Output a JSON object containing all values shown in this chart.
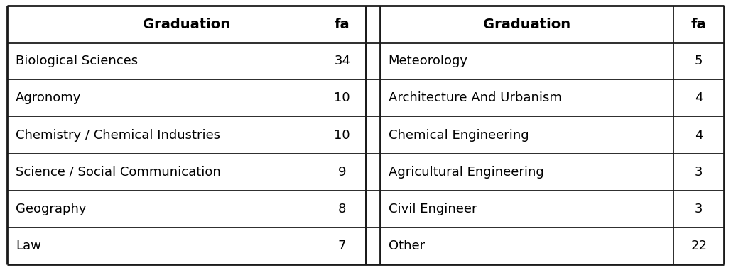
{
  "left_col": [
    "Biological Sciences",
    "Agronomy",
    "Chemistry / Chemical Industries",
    "Science / Social Communication",
    "Geography",
    "Law"
  ],
  "left_fa": [
    "34",
    "10",
    "10",
    "9",
    "8",
    "7"
  ],
  "right_col": [
    "Meteorology",
    "Architecture And Urbanism",
    "Chemical Engineering",
    "Agricultural Engineering",
    "Civil Engineer",
    "Other"
  ],
  "right_fa": [
    "5",
    "4",
    "4",
    "3",
    "3",
    "22"
  ],
  "header": [
    "Graduation",
    "fa",
    "Graduation",
    "fa"
  ],
  "bg_color": "#ffffff",
  "header_bg": "#ffffff",
  "line_color": "#1a1a1a",
  "text_color": "#000000",
  "font_size": 13,
  "header_font_size": 14
}
